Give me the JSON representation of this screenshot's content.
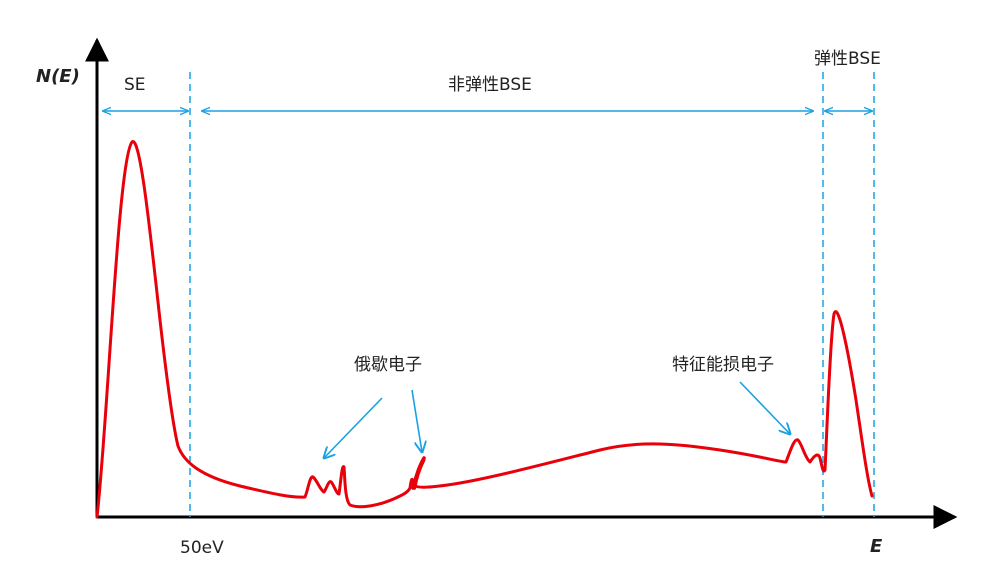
{
  "diagram": {
    "y_axis_label": "N(E)",
    "x_axis_label": "E",
    "tick_50ev": "50eV",
    "region_se": "SE",
    "region_inelastic_bse": "非弹性BSE",
    "region_elastic_bse": "弹性BSE",
    "annotation_auger": "俄歇电子",
    "annotation_energy_loss": "特征能损电子"
  },
  "colors": {
    "curve": "#e8000b",
    "guide": "#1ba1e2",
    "axis": "#000000"
  }
}
